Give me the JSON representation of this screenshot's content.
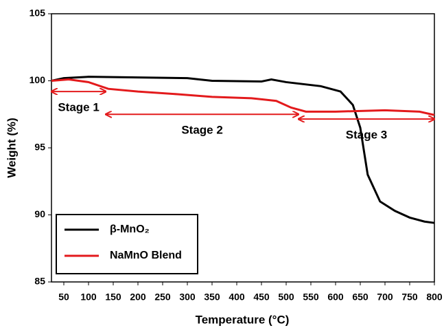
{
  "chart_data": {
    "type": "line",
    "xlabel": "Temperature (°C)",
    "ylabel": "Weight (%)",
    "xlim": [
      25,
      800
    ],
    "xticks": [
      50,
      100,
      150,
      200,
      250,
      300,
      350,
      400,
      450,
      500,
      550,
      600,
      650,
      700,
      750,
      800
    ],
    "ylim": [
      85,
      105
    ],
    "yticks": [
      85,
      90,
      95,
      100,
      105
    ],
    "grid": false,
    "legend": "lower left",
    "series": [
      {
        "name": "β-MnO₂",
        "color": "#000000",
        "x": [
          25,
          50,
          100,
          200,
          300,
          350,
          450,
          470,
          500,
          570,
          610,
          635,
          650,
          665,
          690,
          720,
          750,
          780,
          800
        ],
        "values": [
          100,
          100.2,
          100.3,
          100.25,
          100.2,
          100,
          99.95,
          100.1,
          99.9,
          99.6,
          99.2,
          98.2,
          96.5,
          93,
          91,
          90.3,
          89.8,
          89.5,
          89.4
        ]
      },
      {
        "name": "NaMnO Blend",
        "color": "#e31a1c",
        "x": [
          25,
          60,
          100,
          140,
          200,
          280,
          350,
          430,
          480,
          510,
          540,
          600,
          700,
          770,
          800
        ],
        "values": [
          100,
          100.1,
          99.9,
          99.4,
          99.2,
          99,
          98.8,
          98.7,
          98.5,
          98,
          97.7,
          97.7,
          97.8,
          97.7,
          97.45
        ]
      }
    ],
    "annotations": [
      {
        "text": "Stage 1",
        "x": [
          25,
          135
        ],
        "y": 99.2
      },
      {
        "text": "Stage 2",
        "x": [
          135,
          525
        ],
        "y": 97.5
      },
      {
        "text": "Stage 3",
        "x": [
          525,
          800
        ],
        "y": 97.15
      }
    ]
  }
}
